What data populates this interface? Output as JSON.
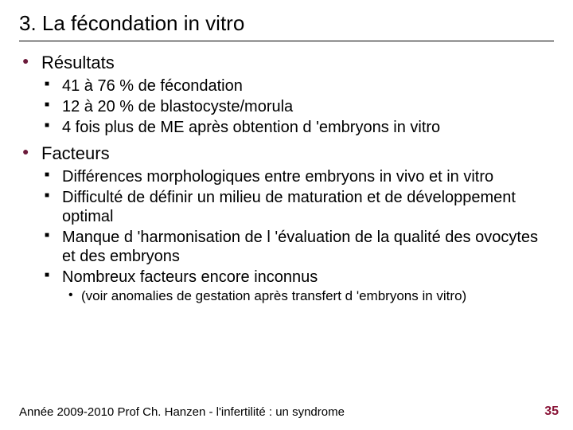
{
  "title": "3. La fécondation in vitro",
  "colors": {
    "bullet_level1": "#6b1a3a",
    "bullet_level2": "#000000",
    "pagenum": "#8a1538",
    "text": "#000000",
    "background": "#ffffff",
    "underline": "#000000"
  },
  "fonts": {
    "family": "Arial",
    "title_size_pt": 20,
    "l1_size_pt": 17,
    "l2_size_pt": 15,
    "l3_size_pt": 13,
    "footer_size_pt": 11
  },
  "items": [
    {
      "label": "Résultats",
      "sub": [
        {
          "label": "41 à 76 % de fécondation"
        },
        {
          "label": "12 à 20 % de blastocyste/morula"
        },
        {
          "label": "4 fois plus de ME après obtention d 'embryons in vitro"
        }
      ]
    },
    {
      "label": "Facteurs",
      "sub": [
        {
          "label": "Différences morphologiques entre embryons in vivo et in vitro"
        },
        {
          "label": "Difficulté de définir un milieu de maturation et de développement optimal"
        },
        {
          "label": "Manque d 'harmonisation de l 'évaluation de la qualité des ovocytes et des embryons"
        },
        {
          "label": "Nombreux facteurs encore inconnus",
          "sub": [
            {
              "label": "(voir anomalies de gestation après transfert d 'embryons in vitro)"
            }
          ]
        }
      ]
    }
  ],
  "footer": "Année 2009-2010 Prof Ch. Hanzen - l'infertilité : un syndrome",
  "page_number": "35"
}
